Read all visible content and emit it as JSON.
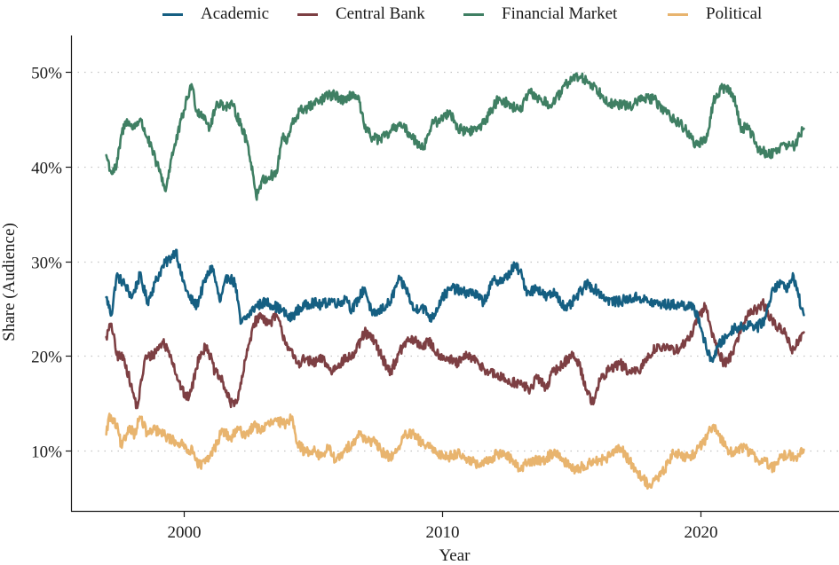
{
  "chart_data": {
    "type": "line",
    "title": "",
    "xlabel": "Year",
    "ylabel": "Share (Audience)",
    "xlim": [
      1995.7,
      2025.2
    ],
    "ylim": [
      3.5,
      52
    ],
    "x_ticks": [
      2000,
      2010,
      2020
    ],
    "x_tick_labels": [
      "2000",
      "2010",
      "2020"
    ],
    "y_ticks": [
      10,
      20,
      30,
      40,
      50
    ],
    "y_tick_labels": [
      "10%",
      "20%",
      "30%",
      "40%",
      "50%"
    ],
    "grid": "horizontal dotted",
    "legend_position": "top",
    "series": [
      {
        "name": "Academic",
        "color": "#155f82",
        "x": [
          1997.0,
          1997.2,
          1997.4,
          1997.7,
          1998.0,
          1998.3,
          1998.6,
          1998.9,
          1999.2,
          1999.5,
          1999.7,
          1999.9,
          2000.2,
          2000.5,
          2000.8,
          2001.1,
          2001.4,
          2001.7,
          2002.0,
          2002.2,
          2002.5,
          2002.8,
          2003.2,
          2003.5,
          2003.8,
          2004.1,
          2004.4,
          2004.7,
          2005.0,
          2005.3,
          2005.7,
          2006.0,
          2006.3,
          2006.5,
          2006.8,
          2007.0,
          2007.3,
          2007.6,
          2008.0,
          2008.3,
          2008.6,
          2008.9,
          2009.2,
          2009.6,
          2010.0,
          2010.4,
          2010.8,
          2011.2,
          2011.6,
          2012.0,
          2012.4,
          2012.8,
          2013.0,
          2013.3,
          2013.7,
          2014.0,
          2014.4,
          2014.8,
          2015.2,
          2015.6,
          2016.0,
          2016.4,
          2016.8,
          2017.2,
          2017.6,
          2018.0,
          2018.4,
          2018.8,
          2019.2,
          2019.6,
          2019.9,
          2020.1,
          2020.3,
          2020.5,
          2020.7,
          2021.0,
          2021.3,
          2021.6,
          2021.9,
          2022.2,
          2022.5,
          2022.8,
          2023.1,
          2023.4,
          2023.6,
          2023.8,
          2024.0
        ],
        "values": [
          26.2,
          24.3,
          28.5,
          27.6,
          26.2,
          28.5,
          25.7,
          27.8,
          29.5,
          30.4,
          31.2,
          28.5,
          26.2,
          25.3,
          27.8,
          29.5,
          25.7,
          28.5,
          27.6,
          23.4,
          24.3,
          25.3,
          25.7,
          25.3,
          24.8,
          23.9,
          24.8,
          25.3,
          25.7,
          25.3,
          25.9,
          25.5,
          26.2,
          24.8,
          26.2,
          27.2,
          24.3,
          24.8,
          25.7,
          28.0,
          27.2,
          24.8,
          25.3,
          23.9,
          26.2,
          27.2,
          26.7,
          26.7,
          25.7,
          28.0,
          28.0,
          29.5,
          29.0,
          26.7,
          27.2,
          26.2,
          26.7,
          24.8,
          26.2,
          27.6,
          26.9,
          25.9,
          25.7,
          26.0,
          26.2,
          25.7,
          25.5,
          25.4,
          25.4,
          25.3,
          24.3,
          22.1,
          20.1,
          19.7,
          21.1,
          22.0,
          23.0,
          23.0,
          23.4,
          23.0,
          23.9,
          27.2,
          27.6,
          27.2,
          28.5,
          26.2,
          24.3
        ]
      },
      {
        "name": "Central Bank",
        "color": "#7d3f43",
        "x": [
          1997.0,
          1997.2,
          1997.4,
          1997.7,
          1998.0,
          1998.2,
          1998.5,
          1998.8,
          1999.2,
          1999.5,
          1999.8,
          2000.1,
          2000.3,
          2000.6,
          2000.9,
          2001.2,
          2001.5,
          2001.8,
          2002.1,
          2002.4,
          2002.7,
          2003.0,
          2003.3,
          2003.6,
          2003.8,
          2004.1,
          2004.4,
          2004.7,
          2005.0,
          2005.4,
          2005.7,
          2006.0,
          2006.3,
          2006.6,
          2007.0,
          2007.4,
          2007.7,
          2008.0,
          2008.3,
          2008.6,
          2008.9,
          2009.2,
          2009.5,
          2009.8,
          2010.2,
          2010.6,
          2011.0,
          2011.4,
          2011.8,
          2012.2,
          2012.6,
          2013.0,
          2013.4,
          2013.7,
          2014.0,
          2014.3,
          2014.7,
          2015.0,
          2015.3,
          2015.6,
          2015.8,
          2016.1,
          2016.5,
          2016.9,
          2017.2,
          2017.6,
          2018.0,
          2018.4,
          2018.8,
          2019.2,
          2019.6,
          2019.9,
          2020.2,
          2020.4,
          2020.6,
          2020.9,
          2021.2,
          2021.6,
          2021.9,
          2022.2,
          2022.4,
          2022.7,
          2023.0,
          2023.3,
          2023.5,
          2023.8,
          2024.0
        ],
        "values": [
          22.0,
          23.4,
          20.1,
          19.7,
          16.4,
          14.5,
          19.7,
          20.1,
          21.5,
          20.1,
          17.3,
          15.4,
          16.4,
          20.1,
          21.1,
          18.3,
          17.3,
          15.0,
          15.4,
          19.7,
          23.4,
          24.3,
          23.4,
          24.3,
          22.5,
          20.6,
          19.2,
          19.7,
          19.2,
          19.7,
          18.3,
          19.2,
          19.7,
          20.1,
          22.5,
          21.5,
          19.7,
          18.3,
          20.1,
          21.5,
          21.7,
          21.0,
          21.5,
          20.3,
          19.7,
          19.2,
          20.1,
          19.2,
          18.3,
          17.8,
          17.3,
          17.1,
          16.4,
          17.8,
          16.6,
          18.3,
          19.2,
          20.1,
          19.2,
          16.4,
          15.0,
          17.3,
          18.7,
          19.2,
          18.3,
          18.3,
          20.1,
          21.1,
          20.6,
          20.8,
          22.0,
          23.9,
          25.3,
          23.0,
          21.1,
          19.2,
          20.1,
          23.0,
          24.8,
          24.8,
          25.7,
          23.9,
          23.0,
          22.5,
          20.6,
          21.5,
          22.5
        ]
      },
      {
        "name": "Financial Market",
        "color": "#3f7f63",
        "x": [
          1997.0,
          1997.2,
          1997.4,
          1997.6,
          1997.8,
          1998.0,
          1998.3,
          1998.6,
          1998.9,
          1999.1,
          1999.3,
          1999.5,
          1999.7,
          2000.0,
          2000.3,
          2000.5,
          2000.8,
          2001.0,
          2001.3,
          2001.6,
          2001.9,
          2002.2,
          2002.5,
          2002.7,
          2002.8,
          2003.0,
          2003.3,
          2003.6,
          2003.8,
          2004.0,
          2004.2,
          2004.5,
          2004.8,
          2005.2,
          2005.6,
          2005.9,
          2006.3,
          2006.5,
          2006.8,
          2007.0,
          2007.3,
          2007.6,
          2008.0,
          2008.3,
          2008.7,
          2009.0,
          2009.3,
          2009.6,
          2010.0,
          2010.3,
          2010.6,
          2011.0,
          2011.4,
          2011.8,
          2012.2,
          2012.6,
          2013.0,
          2013.4,
          2013.8,
          2014.2,
          2014.6,
          2015.0,
          2015.4,
          2015.8,
          2016.2,
          2016.6,
          2017.0,
          2017.4,
          2017.8,
          2018.2,
          2018.6,
          2019.0,
          2019.4,
          2019.8,
          2020.2,
          2020.5,
          2020.8,
          2021.0,
          2021.3,
          2021.6,
          2021.8,
          2022.2,
          2022.6,
          2022.9,
          2023.3,
          2023.6,
          2024.0
        ],
        "values": [
          41.2,
          39.3,
          40.0,
          43.5,
          45.0,
          44.0,
          45.0,
          43.0,
          40.7,
          39.3,
          37.4,
          40.7,
          42.6,
          45.9,
          48.7,
          45.9,
          45.4,
          44.0,
          46.8,
          46.4,
          46.4,
          44.5,
          42.1,
          38.9,
          36.8,
          38.4,
          38.9,
          39.3,
          43.1,
          42.6,
          44.5,
          45.9,
          46.2,
          46.8,
          47.5,
          47.5,
          46.8,
          47.8,
          46.8,
          44.0,
          43.1,
          42.8,
          43.6,
          44.5,
          43.6,
          42.6,
          42.1,
          44.5,
          45.0,
          45.9,
          44.0,
          43.7,
          44.0,
          45.4,
          47.3,
          46.5,
          45.9,
          47.8,
          47.1,
          46.4,
          47.8,
          49.4,
          49.4,
          48.7,
          47.5,
          46.5,
          46.5,
          46.5,
          47.3,
          47.1,
          45.9,
          45.0,
          44.0,
          42.4,
          42.6,
          46.8,
          48.2,
          48.4,
          47.3,
          43.7,
          44.5,
          42.1,
          41.2,
          41.7,
          42.4,
          42.1,
          44.0
        ]
      },
      {
        "name": "Political",
        "color": "#e8b46e",
        "x": [
          1997.0,
          1997.1,
          1997.4,
          1997.6,
          1997.9,
          1998.1,
          1998.3,
          1998.6,
          1998.9,
          1999.2,
          1999.5,
          1999.8,
          2000.1,
          2000.4,
          2000.6,
          2000.9,
          2001.2,
          2001.5,
          2001.8,
          2002.1,
          2002.4,
          2002.7,
          2003.0,
          2003.3,
          2003.6,
          2003.9,
          2004.2,
          2004.4,
          2004.7,
          2005.0,
          2005.3,
          2005.6,
          2005.9,
          2006.2,
          2006.5,
          2006.8,
          2007.1,
          2007.4,
          2007.7,
          2008.0,
          2008.3,
          2008.6,
          2008.9,
          2009.2,
          2009.5,
          2009.8,
          2010.2,
          2010.6,
          2011.0,
          2011.4,
          2011.8,
          2012.1,
          2012.4,
          2012.7,
          2013.0,
          2013.3,
          2013.6,
          2014.0,
          2014.3,
          2014.6,
          2014.9,
          2015.2,
          2015.5,
          2015.8,
          2016.1,
          2016.4,
          2016.7,
          2016.9,
          2017.2,
          2017.5,
          2017.8,
          2018.0,
          2018.3,
          2018.6,
          2018.9,
          2019.2,
          2019.5,
          2019.8,
          2020.1,
          2020.4,
          2020.6,
          2020.8,
          2021.1,
          2021.4,
          2021.7,
          2021.9,
          2022.2,
          2022.5,
          2022.8,
          2023.1,
          2023.4,
          2023.7,
          2024.0
        ],
        "values": [
          11.7,
          13.6,
          12.6,
          10.3,
          12.6,
          11.7,
          13.6,
          11.7,
          12.2,
          11.7,
          11.2,
          10.8,
          10.3,
          9.8,
          8.4,
          8.9,
          10.3,
          12.2,
          11.2,
          12.2,
          11.7,
          12.6,
          12.2,
          12.8,
          13.1,
          12.8,
          13.6,
          10.8,
          9.8,
          10.1,
          9.3,
          10.3,
          8.9,
          9.8,
          10.8,
          11.7,
          11.2,
          10.8,
          9.8,
          9.3,
          10.3,
          11.7,
          11.7,
          10.8,
          10.3,
          9.8,
          9.3,
          9.8,
          9.1,
          8.4,
          8.9,
          9.6,
          9.8,
          8.9,
          8.1,
          8.7,
          8.9,
          9.1,
          9.8,
          9.3,
          8.4,
          7.9,
          8.4,
          8.9,
          8.9,
          9.3,
          9.8,
          10.3,
          9.1,
          7.9,
          7.0,
          6.2,
          7.0,
          7.9,
          9.6,
          9.6,
          9.3,
          9.8,
          10.8,
          12.2,
          12.2,
          11.2,
          10.0,
          9.8,
          10.5,
          9.8,
          9.1,
          8.9,
          8.1,
          9.3,
          9.6,
          9.3,
          10.1
        ]
      }
    ]
  }
}
